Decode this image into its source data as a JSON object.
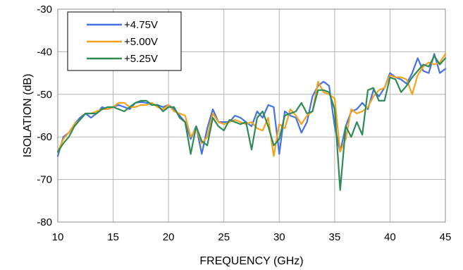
{
  "chart_data": {
    "type": "line",
    "xlabel": "FREQUENCY (GHz)",
    "ylabel": "ISOLATION (dB)",
    "xlim": [
      10,
      45
    ],
    "ylim": [
      -80,
      -30
    ],
    "xticks": [
      "10",
      "15",
      "20",
      "25",
      "30",
      "35",
      "40",
      "45"
    ],
    "yticks": [
      "-30",
      "-40",
      "-50",
      "-60",
      "-70",
      "-80"
    ],
    "grid": true,
    "legend_position": "top-left",
    "series": [
      {
        "name": "+4.75V",
        "color": "#4472e0",
        "x": [
          10,
          10.5,
          11,
          11.5,
          12,
          12.5,
          13,
          13.5,
          14,
          14.5,
          15,
          15.5,
          16,
          16.5,
          17,
          17.5,
          18,
          18.5,
          19,
          19.5,
          20,
          20.5,
          21,
          21.5,
          22,
          22.5,
          23,
          23.5,
          24,
          24.5,
          25,
          25.5,
          26,
          26.5,
          27,
          27.5,
          28,
          28.5,
          29,
          29.5,
          30,
          30.5,
          31,
          31.5,
          32,
          32.5,
          33,
          33.5,
          34,
          34.5,
          35,
          35.5,
          36,
          36.5,
          37,
          37.5,
          38,
          38.5,
          39,
          39.5,
          40,
          40.5,
          41,
          41.5,
          42,
          42.5,
          43,
          43.5,
          44,
          44.5,
          45
        ],
        "values": [
          -64.5,
          -60,
          -59,
          -57,
          -55.5,
          -54.5,
          -55.5,
          -54.5,
          -53,
          -53.5,
          -53,
          -52.5,
          -53,
          -53.5,
          -52,
          -51.8,
          -52,
          -52.5,
          -52.5,
          -53,
          -52.5,
          -53.5,
          -55,
          -56.5,
          -60.5,
          -57.5,
          -64,
          -58,
          -53.5,
          -56.5,
          -56.5,
          -56.5,
          -55,
          -55.5,
          -56.5,
          -57.5,
          -54,
          -55.5,
          -52.5,
          -53,
          -64,
          -54,
          -55,
          -55.5,
          -59,
          -56.5,
          -50.5,
          -48,
          -47,
          -48,
          -57.5,
          -63.5,
          -57.5,
          -54,
          -53.5,
          -52,
          -53.5,
          -49,
          -50.5,
          -48.5,
          -45,
          -46,
          -46.5,
          -47.5,
          -45,
          -41.5,
          -44.5,
          -45,
          -40.5,
          -45,
          -44
        ]
      },
      {
        "name": "+5.00V",
        "color": "#f5a21c",
        "x": [
          10,
          10.5,
          11,
          11.5,
          12,
          12.5,
          13,
          13.5,
          14,
          14.5,
          15,
          15.5,
          16,
          16.5,
          17,
          17.5,
          18,
          18.5,
          19,
          19.5,
          20,
          20.5,
          21,
          21.5,
          22,
          22.5,
          23,
          23.5,
          24,
          24.5,
          25,
          25.5,
          26,
          26.5,
          27,
          27.5,
          28,
          28.5,
          29,
          29.5,
          30,
          30.5,
          31,
          31.5,
          32,
          32.5,
          33,
          33.5,
          34,
          34.5,
          35,
          35.5,
          36,
          36.5,
          37,
          37.5,
          38,
          38.5,
          39,
          39.5,
          40,
          40.5,
          41,
          41.5,
          42,
          42.5,
          43,
          43.5,
          44,
          44.5,
          45
        ],
        "values": [
          -63.5,
          -60.5,
          -59,
          -57,
          -56,
          -54.5,
          -54.5,
          -54,
          -53.5,
          -53.5,
          -53,
          -52,
          -52,
          -53,
          -53,
          -52.5,
          -52.5,
          -52,
          -53,
          -53.5,
          -52.5,
          -54,
          -54.5,
          -55,
          -60,
          -58,
          -61.5,
          -60,
          -54.5,
          -56.5,
          -57,
          -56.5,
          -56,
          -56.5,
          -57,
          -56.5,
          -58,
          -58.5,
          -55.5,
          -64.5,
          -57,
          -58,
          -53.5,
          -55,
          -57,
          -55,
          -54,
          -47,
          -49.5,
          -50,
          -51,
          -63.5,
          -60.5,
          -53.5,
          -54.5,
          -54,
          -53,
          -50.5,
          -49,
          -48.5,
          -45.5,
          -46,
          -46,
          -46.5,
          -50,
          -45.5,
          -43.5,
          -42.5,
          -43,
          -42.5,
          -40.5
        ]
      },
      {
        "name": "+5.25V",
        "color": "#2e8b57",
        "x": [
          10,
          10.5,
          11,
          11.5,
          12,
          12.5,
          13,
          13.5,
          14,
          14.5,
          15,
          15.5,
          16,
          16.5,
          17,
          17.5,
          18,
          18.5,
          19,
          19.5,
          20,
          20.5,
          21,
          21.5,
          22,
          22.5,
          23,
          23.5,
          24,
          24.5,
          25,
          25.5,
          26,
          26.5,
          27,
          27.5,
          28,
          28.5,
          29,
          29.5,
          30,
          30.5,
          31,
          31.5,
          32,
          32.5,
          33,
          33.5,
          34,
          34.5,
          35,
          35.5,
          36,
          36.5,
          37,
          37.5,
          38,
          38.5,
          39,
          39.5,
          40,
          40.5,
          41,
          41.5,
          42,
          42.5,
          43,
          43.5,
          44,
          44.5,
          45
        ],
        "values": [
          -63.5,
          -61.5,
          -60,
          -57.5,
          -56,
          -54.5,
          -54.5,
          -54.5,
          -53.5,
          -53,
          -53,
          -53.5,
          -54,
          -53,
          -52,
          -51.5,
          -51.5,
          -52.5,
          -52.5,
          -54,
          -53,
          -53,
          -55.5,
          -56.5,
          -64,
          -57.5,
          -61,
          -62,
          -55.5,
          -57.5,
          -58.5,
          -56,
          -56.5,
          -57,
          -56.5,
          -63,
          -55.5,
          -54,
          -57.5,
          -62,
          -60.5,
          -55,
          -54.5,
          -54,
          -52,
          -54.5,
          -54,
          -49,
          -49,
          -49.5,
          -53.5,
          -72.5,
          -57.5,
          -60,
          -56.5,
          -59.5,
          -49,
          -48.5,
          -51.5,
          -51.5,
          -46,
          -46.5,
          -49.5,
          -48,
          -46,
          -44.5,
          -43,
          -43.5,
          -41,
          -43,
          -41.5
        ]
      }
    ]
  }
}
